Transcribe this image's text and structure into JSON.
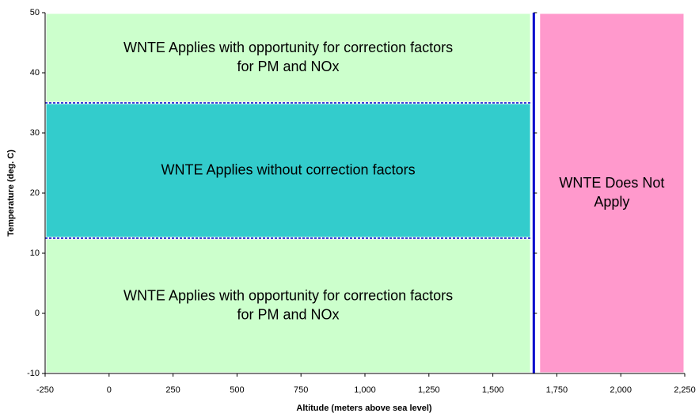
{
  "chart_data": {
    "type": "region",
    "x_label": "Altitude (meters above sea level)",
    "y_label": "Temperature (deg. C)",
    "xlim": [
      -250,
      2250
    ],
    "ylim": [
      -10,
      50
    ],
    "xticks": [
      -250,
      0,
      250,
      500,
      750,
      {
        "value": 1000,
        "label": "1,000"
      },
      {
        "value": 1250,
        "label": "1,250"
      },
      {
        "value": 1500,
        "label": "1,500"
      },
      {
        "value": 1750,
        "label": "1,750"
      },
      {
        "value": 2000,
        "label": "2,000"
      },
      {
        "value": 2250,
        "label": "2,250"
      }
    ],
    "yticks": [
      -10,
      0,
      10,
      20,
      30,
      40,
      50
    ],
    "regions": [
      {
        "x": [
          -250,
          1650
        ],
        "y": [
          35,
          50
        ],
        "color": "#ccffcc",
        "lines": [
          "WNTE Applies with opportunity for correction factors",
          "for PM and NOx"
        ]
      },
      {
        "x": [
          -250,
          1650
        ],
        "y": [
          -10,
          12.5
        ],
        "color": "#ccffcc",
        "lines": [
          "WNTE Applies with opportunity for correction factors",
          "for PM and NOx"
        ]
      },
      {
        "x": [
          -250,
          1650
        ],
        "y": [
          12.5,
          35
        ],
        "color": "#33cccc",
        "lines": [
          "WNTE Applies without correction factors"
        ]
      },
      {
        "x": [
          1680,
          2250
        ],
        "y": [
          -10,
          50
        ],
        "color": "#ff99cc",
        "lines": [
          "WNTE Does Not",
          "Apply"
        ]
      }
    ],
    "vertical_line": {
      "x": 1660,
      "color": "#0000cc"
    },
    "dashed_lines": {
      "y": [
        35,
        12.5
      ],
      "color": "#0000cc"
    }
  }
}
